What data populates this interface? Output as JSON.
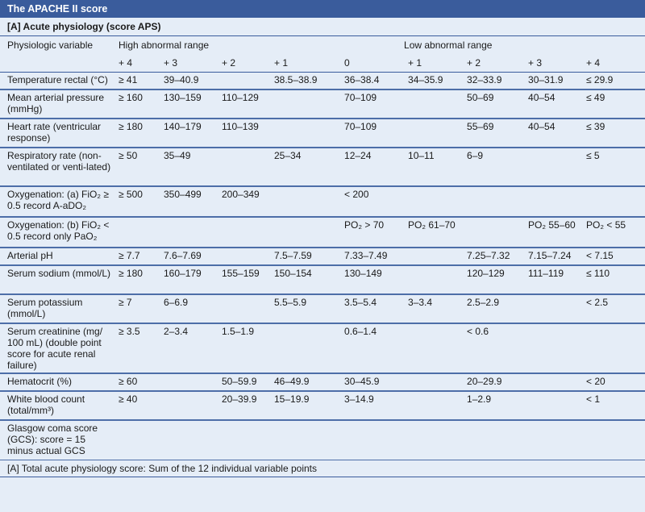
{
  "title": "The APACHE II score",
  "section": "[A] Acute physiology (score APS)",
  "headers": {
    "variable": "Physiologic variable",
    "high": "High abnormal range",
    "low": "Low abnormal range",
    "scores": [
      "+ 4",
      "+ 3",
      "+ 2",
      "+ 1",
      "0",
      "+ 1",
      "+ 2",
      "+ 3",
      "+ 4"
    ]
  },
  "rows": [
    {
      "label": "Temperature rectal (°C)",
      "cells": [
        "≥ 41",
        "39–40.9",
        "",
        "38.5–38.9",
        "36–38.4",
        "34–35.9",
        "32–33.9",
        "30–31.9",
        "≤ 29.9"
      ]
    },
    {
      "label": "Mean arterial pressure (mmHg)",
      "cells": [
        "≥ 160",
        "130–159",
        "110–129",
        "",
        "70–109",
        "",
        "50–69",
        "40–54",
        "≤ 49"
      ]
    },
    {
      "label": "Heart rate (ventricular response)",
      "cells": [
        "≥ 180",
        "140–179",
        "110–139",
        "",
        "70–109",
        "",
        "55–69",
        "40–54",
        "≤ 39"
      ]
    },
    {
      "label": "Respiratory rate (non-ventilated or venti-lated)",
      "cells": [
        "≥ 50",
        "35–49",
        "",
        "25–34",
        "12–24",
        "10–11",
        "6–9",
        "",
        "≤ 5"
      ]
    },
    {
      "label": "Oxygenation: (a) FiO₂ ≥ 0.5 record A-aDO₂",
      "cells": [
        "≥ 500",
        "350–499",
        "200–349",
        "",
        "< 200",
        "",
        "",
        "",
        ""
      ]
    },
    {
      "label": "Oxygenation: (b) FiO₂ < 0.5 record only PaO₂",
      "cells": [
        "",
        "",
        "",
        "",
        "PO₂ > 70",
        "PO₂ 61–70",
        "",
        "PO₂ 55–60",
        "PO₂ < 55"
      ]
    },
    {
      "label": "Arterial pH",
      "cells": [
        "≥ 7.7",
        "7.6–7.69",
        "",
        "7.5–7.59",
        "7.33–7.49",
        "",
        "7.25–7.32",
        "7.15–7.24",
        "< 7.15"
      ]
    },
    {
      "label": "Serum sodium (mmol/L)",
      "cells": [
        "≥ 180",
        "160–179",
        "155–159",
        "150–154",
        "130–149",
        "",
        "120–129",
        "111–119",
        "≤ 110"
      ]
    },
    {
      "label": "Serum potassium (mmol/L)",
      "cells": [
        "≥ 7",
        "6–6.9",
        "",
        "5.5–5.9",
        "3.5–5.4",
        "3–3.4",
        "2.5–2.9",
        "",
        "< 2.5"
      ]
    },
    {
      "label": "Serum creatinine (mg/ 100 mL) (double point score for acute renal failure)",
      "cells": [
        "≥ 3.5",
        "2–3.4",
        "1.5–1.9",
        "",
        "0.6–1.4",
        "",
        "< 0.6",
        "",
        ""
      ]
    },
    {
      "label": "Hematocrit (%)",
      "cells": [
        "≥ 60",
        "",
        "50–59.9",
        "46–49.9",
        "30–45.9",
        "",
        "20–29.9",
        "",
        "< 20"
      ]
    },
    {
      "label": "White blood count (total/mm³)",
      "cells": [
        "≥ 40",
        "",
        "20–39.9",
        "15–19.9",
        "3–14.9",
        "",
        "1–2.9",
        "",
        "< 1"
      ]
    },
    {
      "label": "Glasgow coma score (GCS): score = 15 minus actual GCS",
      "cells": [
        "",
        "",
        "",
        "",
        "",
        "",
        "",
        "",
        ""
      ]
    }
  ],
  "footer": "[A] Total acute physiology score: Sum of the 12 individual variable points"
}
